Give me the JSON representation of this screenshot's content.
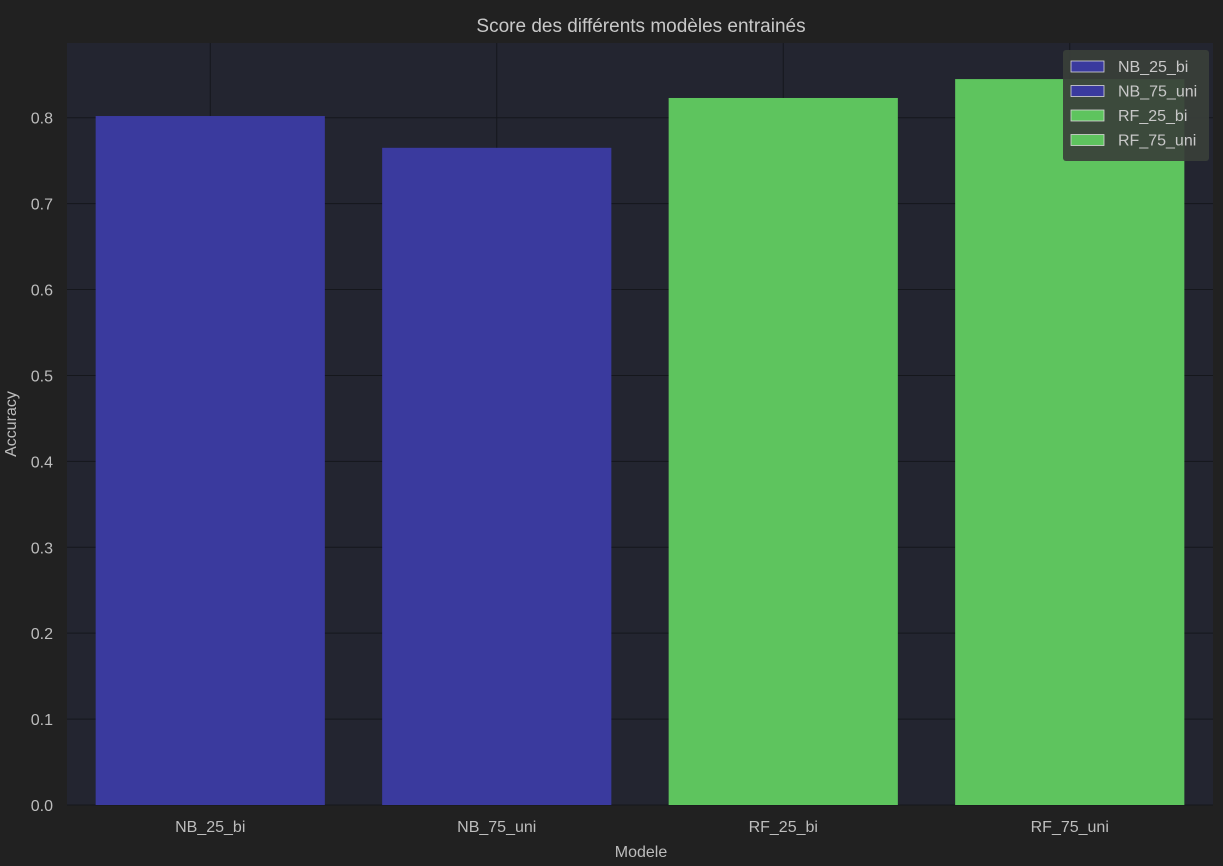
{
  "chart_data": {
    "type": "bar",
    "title": "Score des différents modèles entrainés",
    "xlabel": "Modele",
    "ylabel": "Accuracy",
    "categories": [
      "NB_25_bi",
      "NB_75_uni",
      "RF_25_bi",
      "RF_75_uni"
    ],
    "values": [
      0.802,
      0.765,
      0.823,
      0.845
    ],
    "colors": [
      "#3a3a9e",
      "#3a3a9e",
      "#5ec45e",
      "#5ec45e"
    ],
    "ylim": [
      0,
      0.887
    ],
    "yticks": [
      0.0,
      0.1,
      0.2,
      0.3,
      0.4,
      0.5,
      0.6,
      0.7,
      0.8
    ],
    "grid": true,
    "legend": {
      "placement": "top-right",
      "entries": [
        {
          "label": "NB_25_bi",
          "color": "#3a3a9e"
        },
        {
          "label": "NB_75_uni",
          "color": "#3a3a9e"
        },
        {
          "label": "RF_25_bi",
          "color": "#5ec45e"
        },
        {
          "label": "RF_75_uni",
          "color": "#5ec45e"
        }
      ]
    },
    "style": {
      "figure_bg": "#212121",
      "axes_bg": "#232530",
      "legend_bg": "#3a3f3a"
    }
  }
}
